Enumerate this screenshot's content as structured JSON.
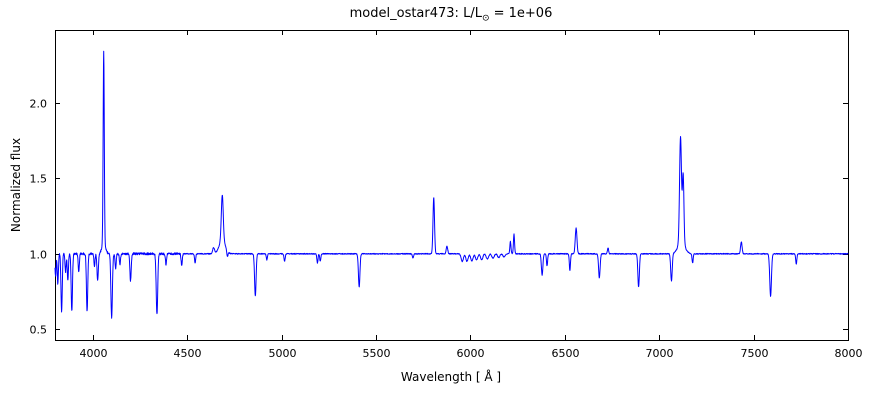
{
  "chart_data": {
    "type": "line",
    "title": {
      "pre": "model_ostar473: L/L",
      "sub": "⊙",
      "post": " = 1e+06"
    },
    "xlabel": "Wavelength [ Å ]",
    "ylabel": "Normalized flux",
    "xlim": [
      3800,
      8000
    ],
    "ylim": [
      0.43,
      2.48
    ],
    "xticks": [
      4000,
      4500,
      5000,
      5500,
      6000,
      6500,
      7000,
      7500,
      8000
    ],
    "yticks": [
      0.5,
      1.0,
      1.5,
      2.0
    ],
    "grid": false,
    "legend": "none",
    "line_color": "#0000ff",
    "axis_color": "#000000",
    "continuum": 1.0,
    "features": [
      {
        "wl": 4058,
        "flux": 2.28,
        "sigma": 3
      },
      {
        "wl": 4058,
        "flux": 1.06,
        "sigma": 10
      },
      {
        "wl": 4640,
        "flux": 1.04,
        "sigma": 5
      },
      {
        "wl": 4686,
        "flux": 1.3,
        "sigma": 5
      },
      {
        "wl": 4686,
        "flux": 1.09,
        "sigma": 16
      },
      {
        "wl": 5806,
        "flux": 1.37,
        "sigma": 4
      },
      {
        "wl": 5876,
        "flux": 1.05,
        "sigma": 4
      },
      {
        "wl": 6212,
        "flux": 1.08,
        "sigma": 3
      },
      {
        "wl": 6231,
        "flux": 1.13,
        "sigma": 3
      },
      {
        "wl": 6560,
        "flux": 1.17,
        "sigma": 4.5
      },
      {
        "wl": 6729,
        "flux": 1.04,
        "sigma": 3
      },
      {
        "wl": 7113,
        "flux": 1.7,
        "sigma": 5
      },
      {
        "wl": 7127,
        "flux": 1.45,
        "sigma": 4
      },
      {
        "wl": 7118,
        "flux": 1.08,
        "sigma": 18
      },
      {
        "wl": 7435,
        "flux": 1.08,
        "sigma": 4
      },
      {
        "wl": 3803,
        "flux": 0.85,
        "sigma": 3
      },
      {
        "wl": 3815,
        "flux": 0.8,
        "sigma": 3
      },
      {
        "wl": 3835,
        "flux": 0.62,
        "sigma": 3.5
      },
      {
        "wl": 3856,
        "flux": 0.88,
        "sigma": 3
      },
      {
        "wl": 3868,
        "flux": 0.82,
        "sigma": 3
      },
      {
        "wl": 3889,
        "flux": 0.62,
        "sigma": 3.5
      },
      {
        "wl": 3926,
        "flux": 0.88,
        "sigma": 3
      },
      {
        "wl": 3970,
        "flux": 0.62,
        "sigma": 3.5
      },
      {
        "wl": 4009,
        "flux": 0.92,
        "sigma": 3
      },
      {
        "wl": 4026,
        "flux": 0.82,
        "sigma": 3.5
      },
      {
        "wl": 4100,
        "flux": 0.58,
        "sigma": 4
      },
      {
        "wl": 4121,
        "flux": 0.9,
        "sigma": 3
      },
      {
        "wl": 4144,
        "flux": 0.93,
        "sigma": 3
      },
      {
        "wl": 4200,
        "flux": 0.82,
        "sigma": 3.5
      },
      {
        "wl": 4340,
        "flux": 0.6,
        "sigma": 4
      },
      {
        "wl": 4388,
        "flux": 0.93,
        "sigma": 3
      },
      {
        "wl": 4471,
        "flux": 0.92,
        "sigma": 3
      },
      {
        "wl": 4542,
        "flux": 0.94,
        "sigma": 3
      },
      {
        "wl": 4713,
        "flux": 0.96,
        "sigma": 3
      },
      {
        "wl": 4861,
        "flux": 0.72,
        "sigma": 4
      },
      {
        "wl": 4922,
        "flux": 0.96,
        "sigma": 3
      },
      {
        "wl": 5016,
        "flux": 0.95,
        "sigma": 3
      },
      {
        "wl": 5190,
        "flux": 0.94,
        "sigma": 3
      },
      {
        "wl": 5205,
        "flux": 0.95,
        "sigma": 3
      },
      {
        "wl": 5411,
        "flux": 0.78,
        "sigma": 4
      },
      {
        "wl": 5696,
        "flux": 0.97,
        "sigma": 3
      },
      {
        "wl": 5957,
        "flux": 0.95,
        "sigma": 6
      },
      {
        "wl": 5982,
        "flux": 0.95,
        "sigma": 6
      },
      {
        "wl": 6008,
        "flux": 0.95,
        "sigma": 6
      },
      {
        "wl": 6033,
        "flux": 0.96,
        "sigma": 6
      },
      {
        "wl": 6060,
        "flux": 0.96,
        "sigma": 6
      },
      {
        "wl": 6090,
        "flux": 0.965,
        "sigma": 6
      },
      {
        "wl": 6120,
        "flux": 0.97,
        "sigma": 6
      },
      {
        "wl": 6150,
        "flux": 0.975,
        "sigma": 6
      },
      {
        "wl": 6178,
        "flux": 0.98,
        "sigma": 6
      },
      {
        "wl": 6380,
        "flux": 0.86,
        "sigma": 4
      },
      {
        "wl": 6406,
        "flux": 0.92,
        "sigma": 3
      },
      {
        "wl": 6527,
        "flux": 0.89,
        "sigma": 3
      },
      {
        "wl": 6683,
        "flux": 0.84,
        "sigma": 4
      },
      {
        "wl": 6891,
        "flux": 0.78,
        "sigma": 4
      },
      {
        "wl": 7065,
        "flux": 0.82,
        "sigma": 4
      },
      {
        "wl": 7177,
        "flux": 0.94,
        "sigma": 3
      },
      {
        "wl": 7590,
        "flux": 0.72,
        "sigma": 4.5
      },
      {
        "wl": 7726,
        "flux": 0.93,
        "sigma": 3
      }
    ]
  }
}
